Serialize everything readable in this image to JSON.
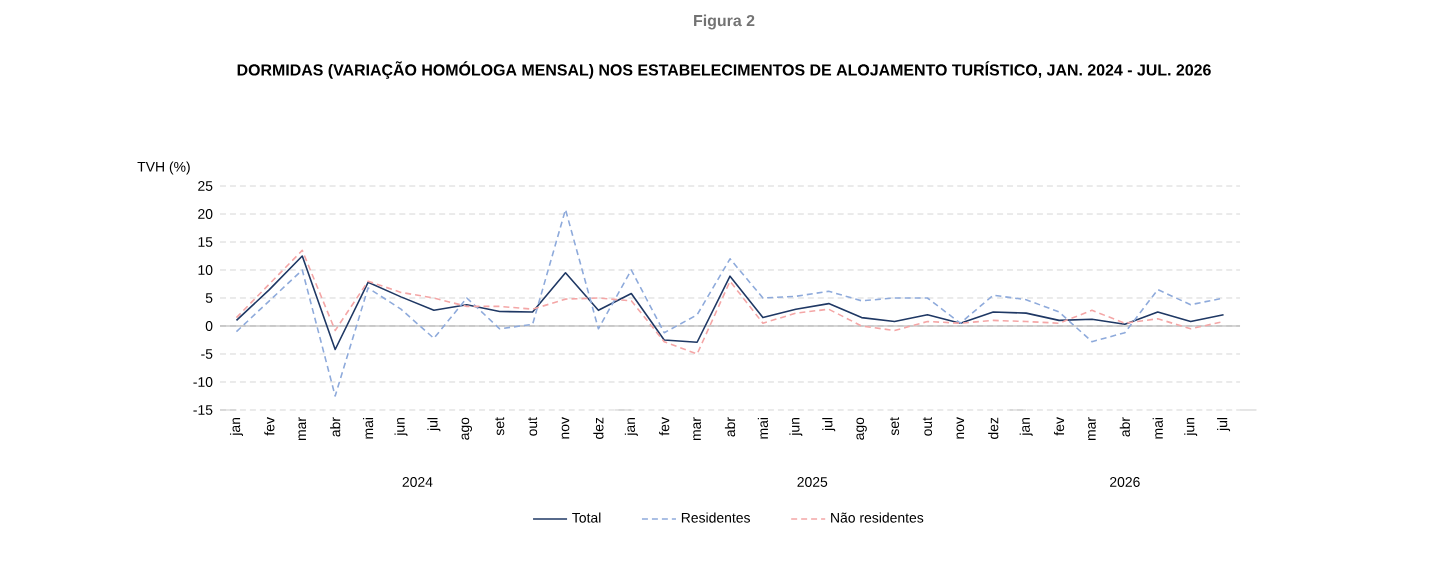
{
  "chart_data": {
    "type": "line",
    "title": "Figura 2",
    "subtitle": "DORMIDAS (VARIAÇÃO HOMÓLOGA MENSAL) NOS ESTABELECIMENTOS DE ALOJAMENTO TURÍSTICO, JAN. 2024 - JUL. 2026",
    "ylabel": "TVH (%)",
    "categories": [
      "jan",
      "fev",
      "mar",
      "abr",
      "mai",
      "jun",
      "jul",
      "ago",
      "set",
      "out",
      "nov",
      "dez",
      "jan",
      "fev",
      "mar",
      "abr",
      "mai",
      "jun",
      "jul",
      "ago",
      "set",
      "out",
      "nov",
      "dez",
      "jan",
      "fev",
      "mar",
      "abr",
      "mai",
      "jun",
      "jul"
    ],
    "annotations": [
      "2024",
      "2025",
      "2026"
    ],
    "series": [
      {
        "name": "Total",
        "color": "#1f3864",
        "line_style": "solid",
        "values": [
          1,
          6.5,
          12.5,
          -4.2,
          7.8,
          5.2,
          2.8,
          3.8,
          2.6,
          2.5,
          9.5,
          2.8,
          5.8,
          -2.5,
          -2.9,
          8.9,
          1.5,
          3,
          4,
          1.5,
          0.8,
          2,
          0.5,
          2.5,
          2.3,
          1,
          1.2,
          0.3,
          2.5,
          0.8,
          2
        ]
      },
      {
        "name": "Residentes",
        "color": "#8eaadb",
        "line_style": "dashed",
        "values": [
          -1,
          4.5,
          10,
          -12.5,
          6.8,
          3,
          -2.2,
          5,
          -0.5,
          0.3,
          20.8,
          -0.5,
          10,
          -1.2,
          2,
          12,
          5,
          5.3,
          6.2,
          4.5,
          5,
          5,
          0.5,
          5.5,
          4.7,
          2.5,
          -2.8,
          -1.2,
          6.5,
          3.8,
          5
        ]
      },
      {
        "name": "Não residentes",
        "color": "#f4a6a6",
        "line_style": "dashed",
        "values": [
          1.5,
          7.5,
          13.5,
          -0.8,
          8,
          6,
          5,
          3.5,
          3.5,
          3,
          4.8,
          5,
          4.5,
          -2.8,
          -5,
          8,
          0.5,
          2.3,
          3,
          0,
          -0.8,
          0.8,
          0.5,
          1,
          0.8,
          0.5,
          2.8,
          0.5,
          1.3,
          -0.5,
          0.8
        ]
      }
    ],
    "ylim": [
      -15,
      25
    ],
    "yticks": [
      -15,
      -10,
      -5,
      0,
      5,
      10,
      15,
      20,
      25
    ],
    "grid": "y",
    "legend": "bottom",
    "marker": "none"
  }
}
